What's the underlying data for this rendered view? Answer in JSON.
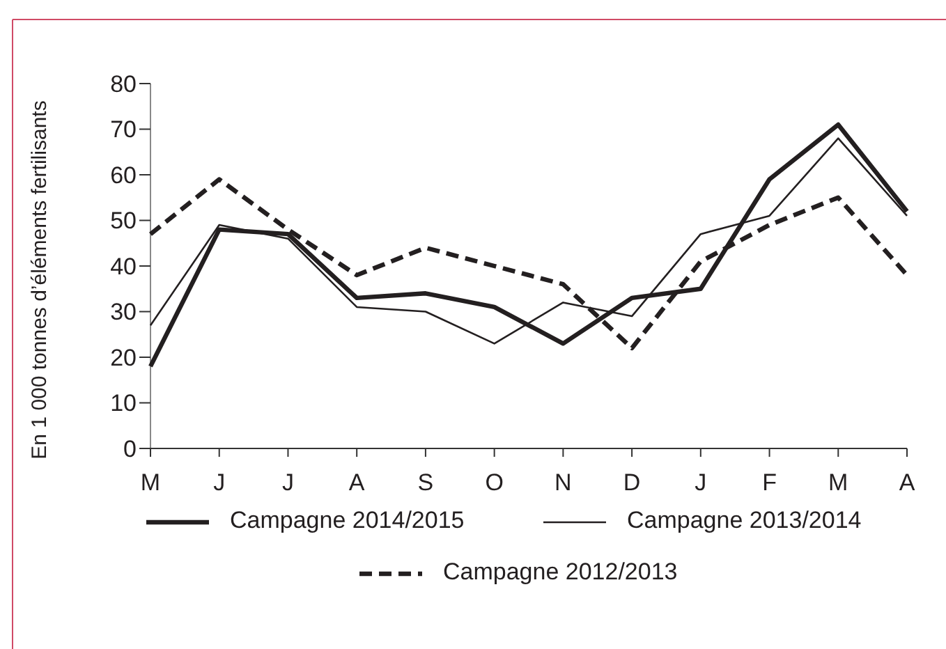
{
  "chart_data": {
    "type": "line",
    "ylabel": "En 1 000 tonnes d’éléments fertilisants",
    "categories": [
      "M",
      "J",
      "J",
      "A",
      "S",
      "O",
      "N",
      "D",
      "J",
      "F",
      "M",
      "A"
    ],
    "ylim": [
      0,
      80
    ],
    "yticks": [
      0,
      10,
      20,
      30,
      40,
      50,
      60,
      70,
      80
    ],
    "grid": false,
    "legend": "bottom",
    "marker": "none",
    "series": [
      {
        "name": "Campagne 2014/2015",
        "color": "#231f20",
        "line_style": "solid",
        "values": [
          18,
          48,
          47,
          33,
          34,
          31,
          23,
          33,
          35,
          59,
          71,
          52
        ]
      },
      {
        "name": "Campagne 2013/2014",
        "color": "#231f20",
        "line_style": "solid",
        "values": [
          27,
          49,
          46,
          31,
          30,
          23,
          32,
          29,
          47,
          51,
          68,
          51
        ]
      },
      {
        "name": "Campagne 2012/2013",
        "color": "#231f20",
        "line_style": "dashed",
        "values": [
          47,
          59,
          48,
          38,
          44,
          40,
          36,
          22,
          41,
          49,
          55,
          38
        ]
      }
    ]
  }
}
